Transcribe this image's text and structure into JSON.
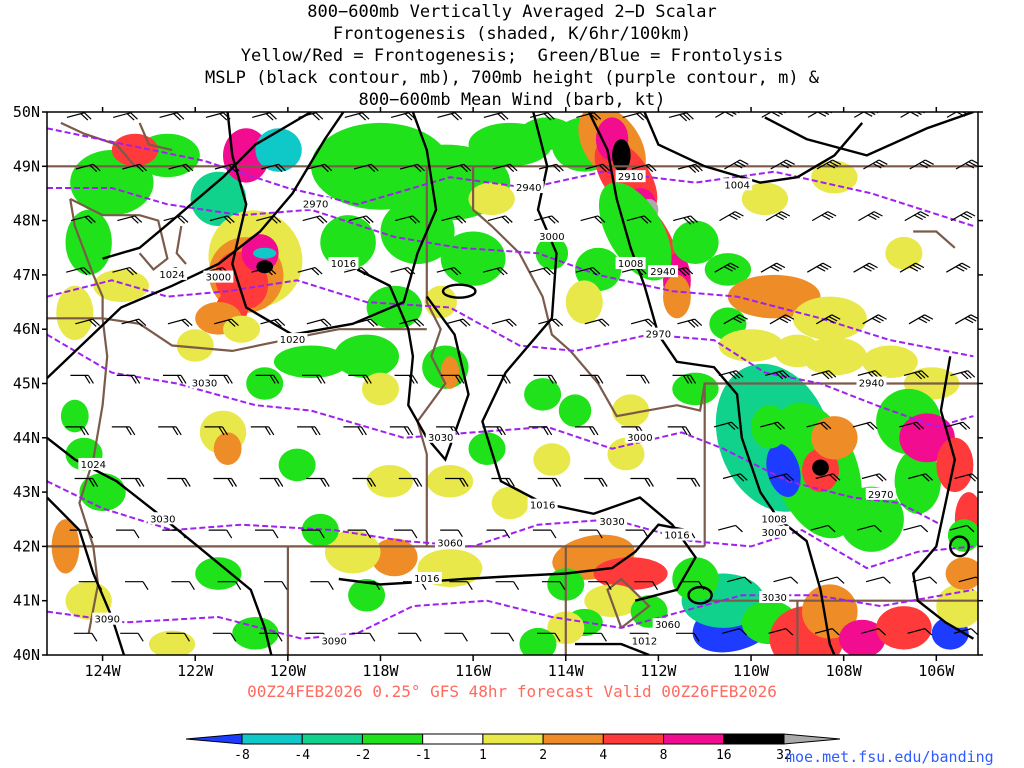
{
  "titles": [
    "800−600mb Vertically Averaged 2−D Scalar",
    "Frontogenesis (shaded, K/6hr/100km)",
    "Yellow/Red = Frontogenesis;  Green/Blue = Frontolysis",
    "MSLP (black contour, mb), 700mb height (purple contour, m) &",
    "800−600mb Mean Wind (barb, kt)"
  ],
  "footer": "00Z24FEB2026 0.25° GFS 48hr forecast Valid 00Z26FEB2026",
  "credit": "moe.met.fsu.edu/banding",
  "colors": {
    "mslp": "#000000",
    "height700": "#a020f0",
    "borders": "#7b5a4a",
    "barbs": "#000000"
  },
  "chart_data": {
    "type": "heatmap",
    "x_ticks": [
      "124W",
      "122W",
      "120W",
      "118W",
      "116W",
      "114W",
      "112W",
      "110W",
      "108W",
      "106W"
    ],
    "y_ticks": [
      "50N",
      "49N",
      "48N",
      "47N",
      "46N",
      "45N",
      "44N",
      "43N",
      "42N",
      "41N",
      "40N"
    ],
    "xlim": [
      -125.2,
      -105.1
    ],
    "ylim": [
      40,
      50
    ],
    "legend": {
      "labels": [
        "-8",
        "-4",
        "-2",
        "-1",
        "1",
        "2",
        "4",
        "8",
        "16",
        "32"
      ],
      "colors": [
        "#1e3cff",
        "#0fc8c8",
        "#10d28c",
        "#20e21a",
        "#ffffff",
        "#e8e84a",
        "#ee8c28",
        "#ff3a3a",
        "#f20c90",
        "#000000",
        "#aaaaaa"
      ]
    },
    "contour_labels": [
      {
        "text": "1004",
        "lon": -110.3,
        "lat": 48.65
      },
      {
        "text": "1008",
        "lon": -112.6,
        "lat": 47.2
      },
      {
        "text": "1008",
        "lon": -109.5,
        "lat": 42.5
      },
      {
        "text": "1012",
        "lon": -112.3,
        "lat": 40.25
      },
      {
        "text": "1016",
        "lon": -118.8,
        "lat": 47.2
      },
      {
        "text": "1016",
        "lon": -114.5,
        "lat": 42.75
      },
      {
        "text": "1016",
        "lon": -117,
        "lat": 41.4
      },
      {
        "text": "1016",
        "lon": -111.6,
        "lat": 42.2
      },
      {
        "text": "1020",
        "lon": -119.9,
        "lat": 45.8
      },
      {
        "text": "1024",
        "lon": -122.5,
        "lat": 47.0
      },
      {
        "text": "1024",
        "lon": -124.2,
        "lat": 43.5
      },
      {
        "text": "2910",
        "lon": -112.6,
        "lat": 48.8
      },
      {
        "text": "2940",
        "lon": -114.8,
        "lat": 48.6
      },
      {
        "text": "2940",
        "lon": -111.9,
        "lat": 47.05
      },
      {
        "text": "2940",
        "lon": -107.4,
        "lat": 45.0
      },
      {
        "text": "2970",
        "lon": -119.4,
        "lat": 48.3
      },
      {
        "text": "2970",
        "lon": -112.0,
        "lat": 45.9
      },
      {
        "text": "2970",
        "lon": -107.2,
        "lat": 42.95
      },
      {
        "text": "3000",
        "lon": -121.5,
        "lat": 46.95
      },
      {
        "text": "3000",
        "lon": -112.4,
        "lat": 44.0
      },
      {
        "text": "3000",
        "lon": -109.5,
        "lat": 42.25
      },
      {
        "text": "3000",
        "lon": -114.3,
        "lat": 47.7
      },
      {
        "text": "3030",
        "lon": -121.8,
        "lat": 45.0
      },
      {
        "text": "3030",
        "lon": -116.7,
        "lat": 44.0
      },
      {
        "text": "3030",
        "lon": -113.0,
        "lat": 42.45
      },
      {
        "text": "3030",
        "lon": -122.7,
        "lat": 42.5
      },
      {
        "text": "3030",
        "lon": -109.5,
        "lat": 41.05
      },
      {
        "text": "3060",
        "lon": -116.5,
        "lat": 42.05
      },
      {
        "text": "3060",
        "lon": -111.8,
        "lat": 40.55
      },
      {
        "text": "3090",
        "lon": -123.9,
        "lat": 40.65
      },
      {
        "text": "3090",
        "lon": -119.0,
        "lat": 40.25
      }
    ]
  }
}
